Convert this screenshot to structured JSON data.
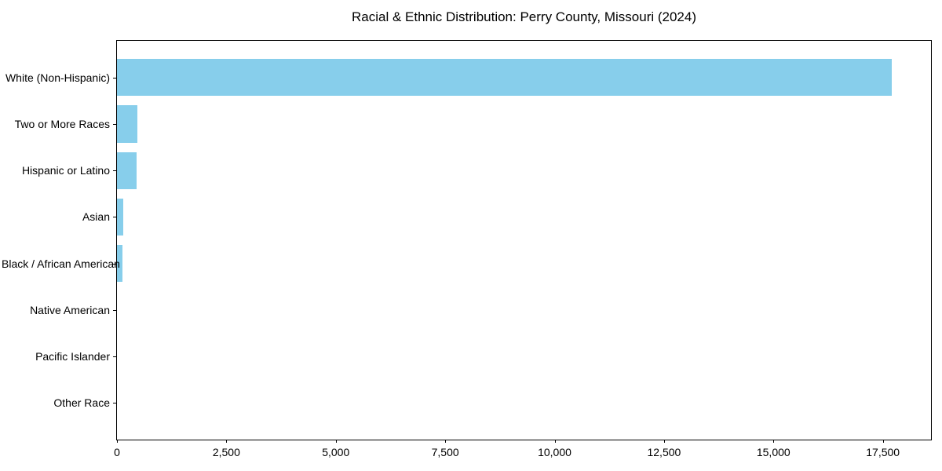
{
  "figure": {
    "background_color": "#ffffff"
  },
  "chart_data": {
    "type": "bar",
    "orientation": "horizontal",
    "title": "Racial & Ethnic Distribution: Perry County, Missouri (2024)",
    "categories": [
      "White (Non-Hispanic)",
      "Two or More Races",
      "Hispanic or Latino",
      "Asian",
      "Black / African American",
      "Native American",
      "Pacific Islander",
      "Other Race"
    ],
    "values": [
      17700,
      460,
      450,
      140,
      125,
      0,
      0,
      0
    ],
    "xlabel": "",
    "ylabel": "",
    "xlim": [
      0,
      18600
    ],
    "x_ticks": [
      0,
      2500,
      5000,
      7500,
      10000,
      12500,
      15000,
      17500
    ],
    "x_tick_labels": [
      "0",
      "2,500",
      "5,000",
      "7,500",
      "10,000",
      "12,500",
      "15,000",
      "17,500"
    ],
    "grid": false,
    "legend_position": "none",
    "bar_color": "#87CEEB",
    "axis_color": "#000000",
    "text_color": "#000000"
  }
}
